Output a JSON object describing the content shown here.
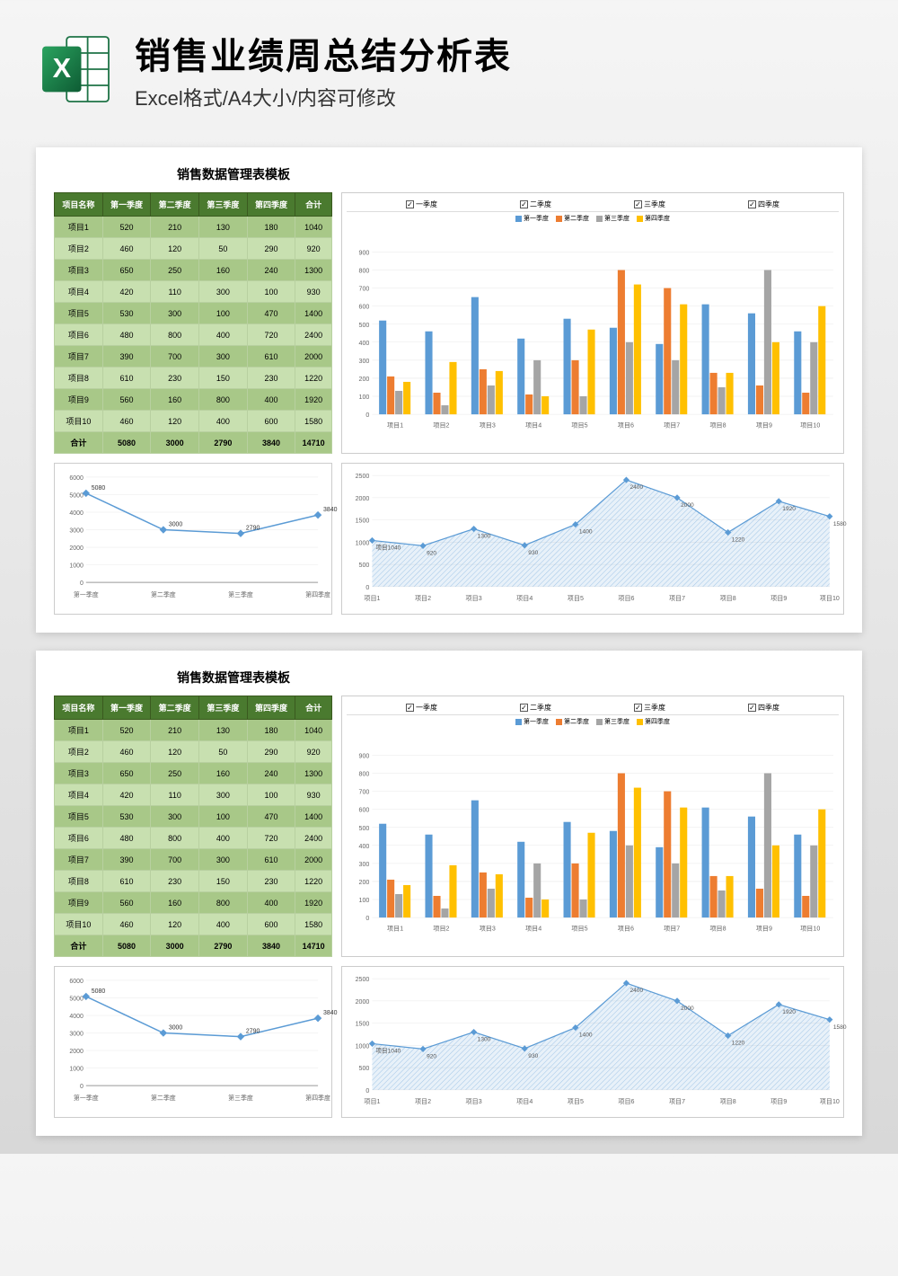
{
  "header": {
    "title": "销售业绩周总结分析表",
    "subtitle": "Excel格式/A4大小/内容可修改",
    "icon_label": "X"
  },
  "sheet_title": "销售数据管理表模板",
  "table": {
    "columns": [
      "项目名称",
      "第一季度",
      "第二季度",
      "第三季度",
      "第四季度",
      "合计"
    ],
    "rows": [
      [
        "项目1",
        520,
        210,
        130,
        180,
        1040
      ],
      [
        "项目2",
        460,
        120,
        50,
        290,
        920
      ],
      [
        "项目3",
        650,
        250,
        160,
        240,
        1300
      ],
      [
        "项目4",
        420,
        110,
        300,
        100,
        930
      ],
      [
        "项目5",
        530,
        300,
        100,
        470,
        1400
      ],
      [
        "项目6",
        480,
        800,
        400,
        720,
        2400
      ],
      [
        "项目7",
        390,
        700,
        300,
        610,
        2000
      ],
      [
        "项目8",
        610,
        230,
        150,
        230,
        1220
      ],
      [
        "项目9",
        560,
        160,
        800,
        400,
        1920
      ],
      [
        "项目10",
        460,
        120,
        400,
        600,
        1580
      ]
    ],
    "total_row": [
      "合计",
      5080,
      3000,
      2790,
      3840,
      14710
    ],
    "header_bg": "#4a7a2f",
    "header_fg": "#ffffff",
    "row_odd_bg": "#a8c888",
    "row_even_bg": "#c8e0b0"
  },
  "bar_chart": {
    "type": "bar",
    "checkboxes": [
      "一季度",
      "二季度",
      "三季度",
      "四季度"
    ],
    "legend": [
      "第一季度",
      "第二季度",
      "第三季度",
      "第四季度"
    ],
    "categories": [
      "项目1",
      "项目2",
      "项目3",
      "项目4",
      "项目5",
      "项目6",
      "项目7",
      "项目8",
      "项目9",
      "项目10"
    ],
    "series": [
      {
        "name": "第一季度",
        "color": "#5b9bd5",
        "values": [
          520,
          460,
          650,
          420,
          530,
          480,
          390,
          610,
          560,
          460
        ]
      },
      {
        "name": "第二季度",
        "color": "#ed7d31",
        "values": [
          210,
          120,
          250,
          110,
          300,
          800,
          700,
          230,
          160,
          120
        ]
      },
      {
        "name": "第三季度",
        "color": "#a5a5a5",
        "values": [
          130,
          50,
          160,
          300,
          100,
          400,
          300,
          150,
          800,
          400
        ]
      },
      {
        "name": "第四季度",
        "color": "#ffc000",
        "values": [
          180,
          290,
          240,
          100,
          470,
          720,
          610,
          230,
          400,
          600
        ]
      }
    ],
    "ylim": [
      0,
      900
    ],
    "ytick_step": 100,
    "background": "#ffffff",
    "grid_color": "#e8e8e8"
  },
  "line_chart": {
    "type": "line",
    "categories": [
      "第一季度",
      "第二季度",
      "第三季度",
      "第四季度"
    ],
    "values": [
      5080,
      3000,
      2790,
      3840
    ],
    "labels": [
      "5080",
      "3000",
      "2790",
      "3840"
    ],
    "ylim": [
      0,
      6000
    ],
    "ytick_step": 1000,
    "line_color": "#5b9bd5",
    "marker_color": "#5b9bd5",
    "marker_style": "diamond",
    "background": "#ffffff",
    "grid_color": "#e8e8e8"
  },
  "area_chart": {
    "type": "area",
    "categories": [
      "项目1",
      "项目2",
      "项目3",
      "项目4",
      "项目5",
      "项目6",
      "项目7",
      "项目8",
      "项目9",
      "项目10"
    ],
    "values": [
      1040,
      920,
      1300,
      930,
      1400,
      2400,
      2000,
      1220,
      1920,
      1580
    ],
    "labels": [
      "项目1040",
      "920",
      "1300",
      "930",
      "1400",
      "2400",
      "2000",
      "1220",
      "1920",
      "1580"
    ],
    "ylim": [
      0,
      2500
    ],
    "ytick_step": 500,
    "fill_color": "#5b9bd5",
    "fill_opacity": 0.35,
    "line_color": "#5b9bd5",
    "marker_color": "#5b9bd5",
    "marker_style": "diamond",
    "background": "#ffffff",
    "grid_color": "#e8e8e8"
  }
}
